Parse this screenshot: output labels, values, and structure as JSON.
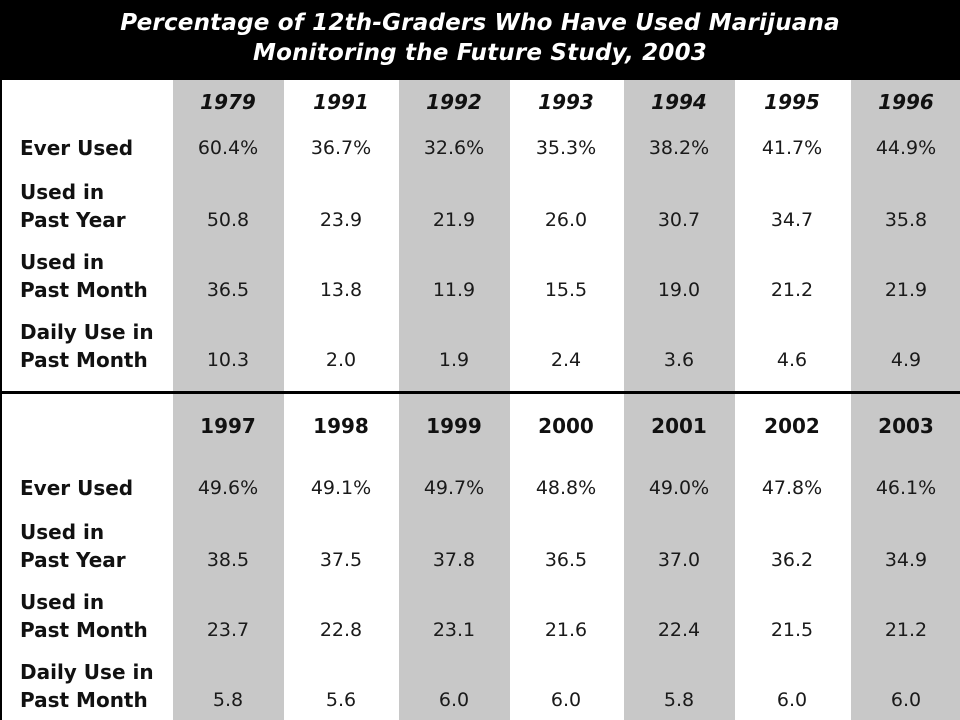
{
  "title_line1": "Percentage of 12th-Graders Who Have Used Marijuana",
  "title_line2": "Monitoring the Future Study, 2003",
  "row_labels": [
    [
      "Ever Used"
    ],
    [
      "Used in",
      "Past Year"
    ],
    [
      "Used in",
      "Past Month"
    ],
    [
      "Daily Use in",
      "Past Month"
    ]
  ],
  "chart_data": {
    "type": "table",
    "title": "Percentage of 12th-Graders Who Have Used Marijuana",
    "subtitle": "Monitoring the Future Study, 2003",
    "tables": [
      {
        "columns": [
          "1979",
          "1991",
          "1992",
          "1993",
          "1994",
          "1995",
          "1996"
        ],
        "rows": [
          {
            "label": "Ever Used",
            "values": [
              "60.4%",
              "36.7%",
              "32.6%",
              "35.3%",
              "38.2%",
              "41.7%",
              "44.9%"
            ]
          },
          {
            "label": "Used in Past Year",
            "values": [
              "50.8",
              "23.9",
              "21.9",
              "26.0",
              "30.7",
              "34.7",
              "35.8"
            ]
          },
          {
            "label": "Used in Past Month",
            "values": [
              "36.5",
              "13.8",
              "11.9",
              "15.5",
              "19.0",
              "21.2",
              "21.9"
            ]
          },
          {
            "label": "Daily Use in Past Month",
            "values": [
              "10.3",
              "2.0",
              "1.9",
              "2.4",
              "3.6",
              "4.6",
              "4.9"
            ]
          }
        ]
      },
      {
        "columns": [
          "1997",
          "1998",
          "1999",
          "2000",
          "2001",
          "2002",
          "2003"
        ],
        "rows": [
          {
            "label": "Ever Used",
            "values": [
              "49.6%",
              "49.1%",
              "49.7%",
              "48.8%",
              "49.0%",
              "47.8%",
              "46.1%"
            ]
          },
          {
            "label": "Used in Past Year",
            "values": [
              "38.5",
              "37.5",
              "37.8",
              "36.5",
              "37.0",
              "36.2",
              "34.9"
            ]
          },
          {
            "label": "Used in Past Month",
            "values": [
              "23.7",
              "22.8",
              "23.1",
              "21.6",
              "22.4",
              "21.5",
              "21.2"
            ]
          },
          {
            "label": "Daily Use in Past Month",
            "values": [
              "5.8",
              "5.6",
              "6.0",
              "6.0",
              "5.8",
              "6.0",
              "6.0"
            ]
          }
        ]
      }
    ]
  }
}
